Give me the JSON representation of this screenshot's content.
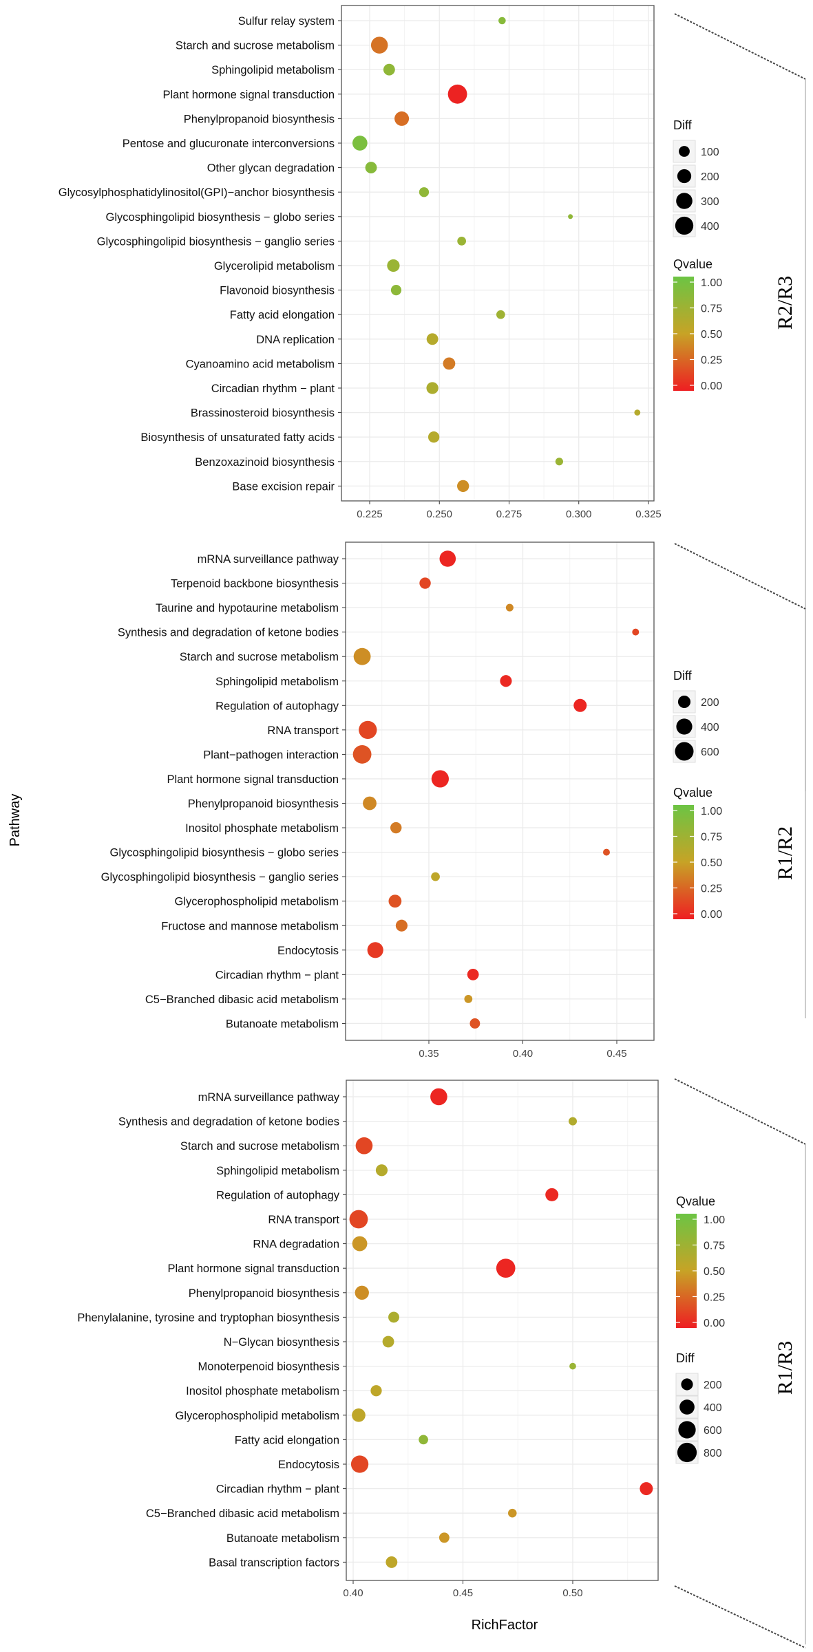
{
  "figure": {
    "y_axis_label": "Pathway",
    "x_axis_label": "RichFactor"
  },
  "chart_data": [
    {
      "type": "scatter",
      "panel": "R2/R3",
      "xlabel": "RichFactor",
      "ylabel": "Pathway",
      "xlim": [
        0.2165,
        0.327
      ],
      "xticks": [
        0.225,
        0.25,
        0.275,
        0.3,
        0.325
      ],
      "xtick_labels": [
        "0.225",
        "0.250",
        "0.275",
        "0.300",
        "0.325"
      ],
      "size_legend": {
        "title": "Diff",
        "values": [
          100,
          200,
          300,
          400
        ]
      },
      "color_legend": {
        "title": "Qvalue",
        "ticks": [
          "1.00",
          "0.75",
          "0.50",
          "0.25",
          "0.00"
        ]
      },
      "legend_order": [
        "size",
        "color"
      ],
      "size_range": [
        22,
        510
      ],
      "points": [
        {
          "pathway": "Sulfur relay system",
          "x": 0.2725,
          "diff": 35,
          "q": 0.85
        },
        {
          "pathway": "Starch and sucrose metabolism",
          "x": 0.2285,
          "diff": 330,
          "q": 0.32
        },
        {
          "pathway": "Sphingolipid metabolism",
          "x": 0.232,
          "diff": 120,
          "q": 0.8
        },
        {
          "pathway": "Plant hormone signal transduction",
          "x": 0.2565,
          "diff": 460,
          "q": 0.02
        },
        {
          "pathway": "Phenylpropanoid biosynthesis",
          "x": 0.2365,
          "diff": 220,
          "q": 0.3
        },
        {
          "pathway": "Pentose and glucuronate interconversions",
          "x": 0.2215,
          "diff": 240,
          "q": 0.92
        },
        {
          "pathway": "Other glycan degradation",
          "x": 0.2255,
          "diff": 120,
          "q": 0.85
        },
        {
          "pathway": "Glycosylphosphatidylinositol(GPI)−anchor biosynthesis",
          "x": 0.2445,
          "diff": 75,
          "q": 0.8
        },
        {
          "pathway": "Glycosphingolipid biosynthesis − globo series",
          "x": 0.297,
          "diff": 22,
          "q": 0.8
        },
        {
          "pathway": "Glycosphingolipid biosynthesis − ganglio series",
          "x": 0.258,
          "diff": 55,
          "q": 0.75
        },
        {
          "pathway": "Glycerolipid metabolism",
          "x": 0.2335,
          "diff": 150,
          "q": 0.75
        },
        {
          "pathway": "Flavonoid biosynthesis",
          "x": 0.2345,
          "diff": 90,
          "q": 0.82
        },
        {
          "pathway": "Fatty acid elongation",
          "x": 0.272,
          "diff": 55,
          "q": 0.72
        },
        {
          "pathway": "DNA replication",
          "x": 0.2475,
          "diff": 120,
          "q": 0.6
        },
        {
          "pathway": "Cyanoamino acid metabolism",
          "x": 0.2535,
          "diff": 140,
          "q": 0.35
        },
        {
          "pathway": "Circadian rhythm − plant",
          "x": 0.2475,
          "diff": 130,
          "q": 0.65
        },
        {
          "pathway": "Brassinosteroid biosynthesis",
          "x": 0.321,
          "diff": 25,
          "q": 0.6
        },
        {
          "pathway": "Biosynthesis of unsaturated fatty acids",
          "x": 0.248,
          "diff": 110,
          "q": 0.6
        },
        {
          "pathway": "Benzoxazinoid biosynthesis",
          "x": 0.293,
          "diff": 40,
          "q": 0.75
        },
        {
          "pathway": "Base excision repair",
          "x": 0.2585,
          "diff": 130,
          "q": 0.42
        }
      ]
    },
    {
      "type": "scatter",
      "panel": "R1/R2",
      "xlabel": "RichFactor",
      "ylabel": "Pathway",
      "xlim": [
        0.3055,
        0.4665
      ],
      "xticks": [
        0.35,
        0.4,
        0.45
      ],
      "xtick_labels": [
        "0.35",
        "0.40",
        "0.45"
      ],
      "size_legend": {
        "title": "Diff",
        "values": [
          200,
          400,
          600
        ]
      },
      "color_legend": {
        "title": "Qvalue",
        "ticks": [
          "1.00",
          "0.75",
          "0.50",
          "0.25",
          "0.00"
        ]
      },
      "legend_order": [
        "size",
        "color"
      ],
      "size_range": [
        22,
        720
      ],
      "points": [
        {
          "pathway": "mRNA surveillance pathway",
          "x": 0.36,
          "diff": 420,
          "q": 0.03
        },
        {
          "pathway": "Terpenoid backbone biosynthesis",
          "x": 0.348,
          "diff": 150,
          "q": 0.15
        },
        {
          "pathway": "Taurine and hypotaurine metabolism",
          "x": 0.393,
          "diff": 45,
          "q": 0.4
        },
        {
          "pathway": "Synthesis and degradation of ketone bodies",
          "x": 0.46,
          "diff": 35,
          "q": 0.15
        },
        {
          "pathway": "Starch and sucrose metabolism",
          "x": 0.3145,
          "diff": 480,
          "q": 0.42
        },
        {
          "pathway": "Sphingolipid metabolism",
          "x": 0.391,
          "diff": 170,
          "q": 0.04
        },
        {
          "pathway": "Regulation of autophagy",
          "x": 0.4305,
          "diff": 230,
          "q": 0.03
        },
        {
          "pathway": "RNA transport",
          "x": 0.3175,
          "diff": 560,
          "q": 0.15
        },
        {
          "pathway": "Plant−pathogen interaction",
          "x": 0.3145,
          "diff": 590,
          "q": 0.2
        },
        {
          "pathway": "Plant hormone signal transduction",
          "x": 0.356,
          "diff": 500,
          "q": 0.03
        },
        {
          "pathway": "Phenylpropanoid biosynthesis",
          "x": 0.3185,
          "diff": 260,
          "q": 0.4
        },
        {
          "pathway": "Inositol phosphate metabolism",
          "x": 0.3325,
          "diff": 150,
          "q": 0.35
        },
        {
          "pathway": "Glycosphingolipid biosynthesis − globo series",
          "x": 0.4445,
          "diff": 35,
          "q": 0.2
        },
        {
          "pathway": "Glycosphingolipid biosynthesis − ganglio series",
          "x": 0.3535,
          "diff": 70,
          "q": 0.55
        },
        {
          "pathway": "Glycerophospholipid metabolism",
          "x": 0.332,
          "diff": 220,
          "q": 0.2
        },
        {
          "pathway": "Fructose and mannose metabolism",
          "x": 0.3355,
          "diff": 170,
          "q": 0.3
        },
        {
          "pathway": "Endocytosis",
          "x": 0.3215,
          "diff": 400,
          "q": 0.1
        },
        {
          "pathway": "Circadian rhythm − plant",
          "x": 0.3735,
          "diff": 160,
          "q": 0.04
        },
        {
          "pathway": "C5−Branched dibasic acid metabolism",
          "x": 0.371,
          "diff": 55,
          "q": 0.45
        },
        {
          "pathway": "Butanoate metabolism",
          "x": 0.3745,
          "diff": 110,
          "q": 0.2
        }
      ]
    },
    {
      "type": "scatter",
      "panel": "R1/R3",
      "xlabel": "RichFactor",
      "ylabel": "Pathway",
      "xlim": [
        0.3955,
        0.5395
      ],
      "xticks": [
        0.4,
        0.45,
        0.5
      ],
      "xtick_labels": [
        "0.40",
        "0.45",
        "0.50"
      ],
      "size_legend": {
        "title": "Diff",
        "values": [
          200,
          400,
          600,
          800
        ]
      },
      "color_legend": {
        "title": "Qvalue",
        "ticks": [
          "1.00",
          "0.75",
          "0.50",
          "0.25",
          "0.00"
        ]
      },
      "legend_order": [
        "color",
        "size"
      ],
      "size_range": [
        22,
        860
      ],
      "points": [
        {
          "pathway": "mRNA surveillance pathway",
          "x": 0.439,
          "diff": 560,
          "q": 0.03
        },
        {
          "pathway": "Synthesis and degradation of ketone bodies",
          "x": 0.5,
          "diff": 65,
          "q": 0.62
        },
        {
          "pathway": "Starch and sucrose metabolism",
          "x": 0.405,
          "diff": 560,
          "q": 0.15
        },
        {
          "pathway": "Sphingolipid metabolism",
          "x": 0.413,
          "diff": 200,
          "q": 0.6
        },
        {
          "pathway": "Regulation of autophagy",
          "x": 0.4905,
          "diff": 270,
          "q": 0.04
        },
        {
          "pathway": "RNA transport",
          "x": 0.4025,
          "diff": 700,
          "q": 0.15
        },
        {
          "pathway": "RNA degradation",
          "x": 0.403,
          "diff": 400,
          "q": 0.45
        },
        {
          "pathway": "Plant hormone signal transduction",
          "x": 0.4695,
          "diff": 760,
          "q": 0.03
        },
        {
          "pathway": "Phenylpropanoid biosynthesis",
          "x": 0.404,
          "diff": 330,
          "q": 0.42
        },
        {
          "pathway": "Phenylalanine, tyrosine and tryptophan biosynthesis",
          "x": 0.4185,
          "diff": 160,
          "q": 0.65
        },
        {
          "pathway": "N−Glycan biosynthesis",
          "x": 0.416,
          "diff": 190,
          "q": 0.6
        },
        {
          "pathway": "Monoterpenoid biosynthesis",
          "x": 0.5,
          "diff": 35,
          "q": 0.75
        },
        {
          "pathway": "Inositol phosphate metabolism",
          "x": 0.4105,
          "diff": 170,
          "q": 0.55
        },
        {
          "pathway": "Glycerophospholipid metabolism",
          "x": 0.4025,
          "diff": 300,
          "q": 0.55
        },
        {
          "pathway": "Fatty acid elongation",
          "x": 0.432,
          "diff": 100,
          "q": 0.8
        },
        {
          "pathway": "Endocytosis",
          "x": 0.403,
          "diff": 600,
          "q": 0.15
        },
        {
          "pathway": "Circadian rhythm − plant",
          "x": 0.5335,
          "diff": 270,
          "q": 0.04
        },
        {
          "pathway": "C5−Branched dibasic acid metabolism",
          "x": 0.4725,
          "diff": 75,
          "q": 0.45
        },
        {
          "pathway": "Butanoate metabolism",
          "x": 0.4415,
          "diff": 130,
          "q": 0.45
        },
        {
          "pathway": "Basal transcription factors",
          "x": 0.4175,
          "diff": 190,
          "q": 0.55
        }
      ]
    }
  ],
  "colors": {
    "q_low": "#ee1e22",
    "q_mid": "#c7a326",
    "q_high": "#6cc444",
    "panel_border": "#555555",
    "grid": "#ebebeb",
    "legend_dot": "#000000"
  }
}
